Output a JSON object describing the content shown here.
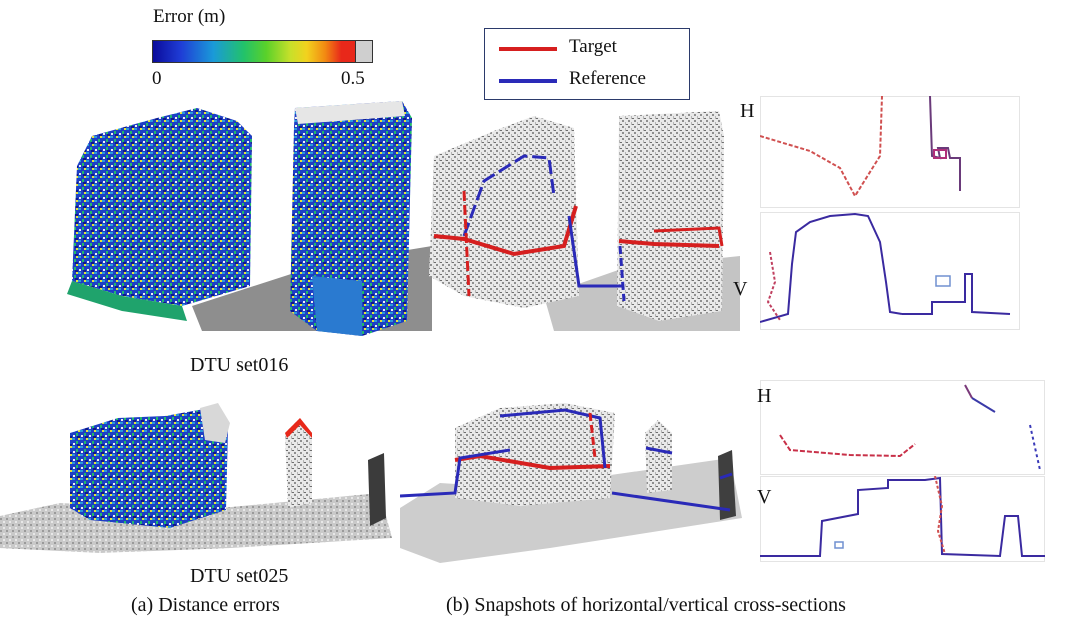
{
  "colorbar": {
    "title": "Error (m)",
    "min_label": "0",
    "max_label": "0.5",
    "gradient": [
      "#0a0a9a",
      "#1f3dd6",
      "#1a9ad8",
      "#22c26a",
      "#5ad12a",
      "#c8e02a",
      "#f2d21e",
      "#f28a12",
      "#e8281a",
      "#cfcfcf"
    ]
  },
  "legend": {
    "items": [
      {
        "label": "Target",
        "color": "#d61f1f"
      },
      {
        "label": "Reference",
        "color": "#2a2ab8"
      }
    ]
  },
  "sections": {
    "h_label_1": "H",
    "v_label_1": "V",
    "h_label_2": "H",
    "v_label_2": "V"
  },
  "captions": {
    "set016": "DTU set016",
    "set025": "DTU set025",
    "a": "(a) Distance errors",
    "b": "(b) Snapshots of horizontal/vertical cross-sections"
  }
}
